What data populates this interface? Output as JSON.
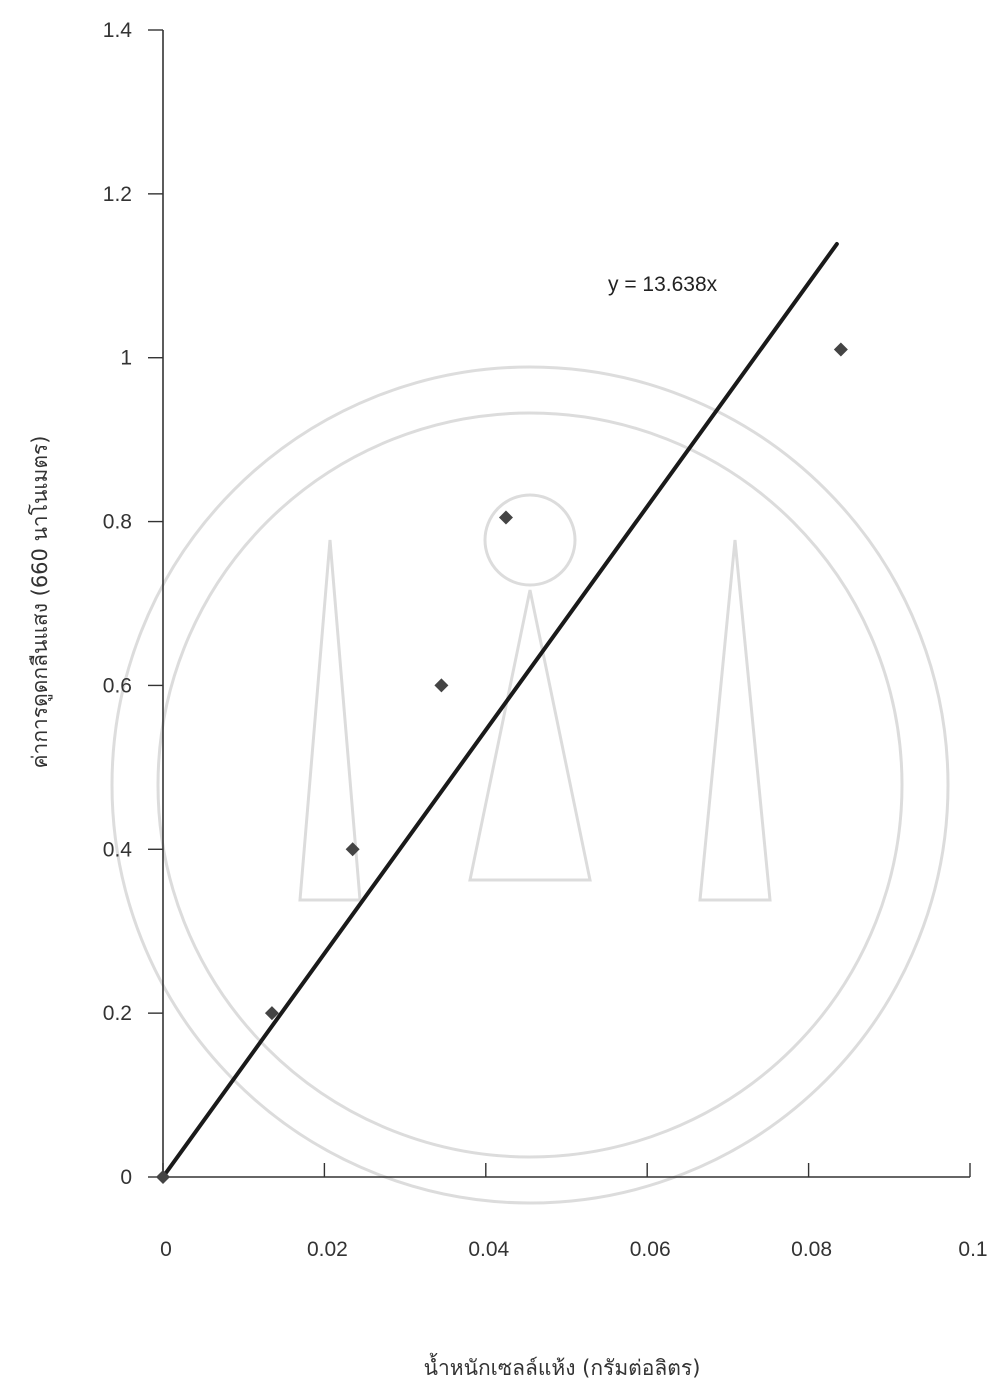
{
  "chart_data": {
    "type": "scatter",
    "title": "",
    "xlabel": "น้ำหนักเซลล์แห้ง (กรัมต่อลิตร)",
    "ylabel": "ค่าการดูดกลืนแสง (660 นาโนเมตร)",
    "xlim": [
      0,
      0.1
    ],
    "ylim": [
      0,
      1.4
    ],
    "x_ticks": [
      "0",
      "0.02",
      "0.04",
      "0.06",
      "0.08",
      "0.1"
    ],
    "y_ticks": [
      "0",
      "0.2",
      "0.4",
      "0.6",
      "0.8",
      "1",
      "1.2",
      "1.4"
    ],
    "series": [
      {
        "points": [
          {
            "x": 0,
            "y": 0
          },
          {
            "x": 0.0135,
            "y": 0.2
          },
          {
            "x": 0.0235,
            "y": 0.4
          },
          {
            "x": 0.0345,
            "y": 0.6
          },
          {
            "x": 0.0425,
            "y": 0.805
          },
          {
            "x": 0.084,
            "y": 1.01
          }
        ]
      }
    ],
    "trendline": {
      "equation": "y = 13.638x",
      "slope": 13.638,
      "x_range": [
        0,
        0.0835
      ]
    },
    "grid": false,
    "legend": "none"
  },
  "colors": {
    "marker": "#444444",
    "trendline": "#1a1a1a",
    "axis": "#333333",
    "watermark": "#cfcfcf"
  }
}
